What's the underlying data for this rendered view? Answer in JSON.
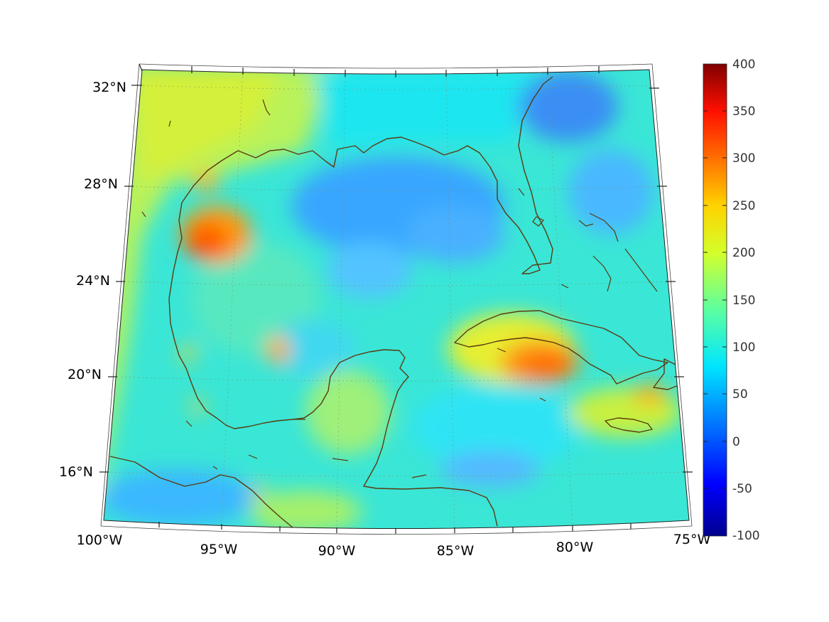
{
  "map": {
    "projection": "conic",
    "extent": {
      "lon_min": -100,
      "lon_max": -75,
      "lat_min": 14,
      "lat_max": 33
    },
    "longitude_labels": [
      "100°W",
      "95°W",
      "90°W",
      "85°W",
      "80°W",
      "75°W"
    ],
    "latitude_labels": [
      "32°N",
      "28°N",
      "24°N",
      "20°N",
      "16°N"
    ],
    "field_colormap": "jet",
    "coastline_color": "#5a3a10",
    "grid": true
  },
  "colorbar": {
    "min": -100,
    "max": 400,
    "tick_labels": [
      "400",
      "350",
      "300",
      "250",
      "200",
      "150",
      "100",
      "50",
      "0",
      "-50",
      "-100"
    ],
    "colors": [
      "#00008f",
      "#0000ff",
      "#0080ff",
      "#00ffff",
      "#80ff80",
      "#ffff00",
      "#ff8000",
      "#ff0000",
      "#800000"
    ]
  }
}
